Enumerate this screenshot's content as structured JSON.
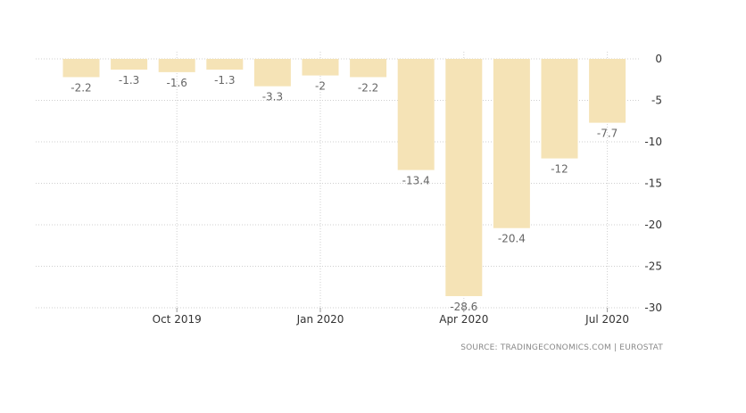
{
  "chart_data": {
    "type": "bar",
    "categories": [
      "Aug 2019",
      "Sep 2019",
      "Oct 2019",
      "Nov 2019",
      "Dec 2019",
      "Jan 2020",
      "Feb 2020",
      "Mar 2020",
      "Apr 2020",
      "May 2020",
      "Jun 2020",
      "Jul 2020"
    ],
    "values": [
      -2.2,
      -1.3,
      -1.6,
      -1.3,
      -3.3,
      -2,
      -2.2,
      -13.4,
      -28.6,
      -20.4,
      -12,
      -7.7
    ],
    "value_labels": [
      "-2.2",
      "-1.3",
      "-1.6",
      "-1.3",
      "-3.3",
      "-2",
      "-2.2",
      "-13.4",
      "-28.6",
      "-20.4",
      "-12",
      "-7.7"
    ],
    "x_tick_labels": [
      {
        "category": "Oct 2019",
        "label": "Oct 2019"
      },
      {
        "category": "Jan 2020",
        "label": "Jan 2020"
      },
      {
        "category": "Apr 2020",
        "label": "Apr 2020"
      },
      {
        "category": "Jul 2020",
        "label": "Jul 2020"
      }
    ],
    "y_ticks": [
      0,
      -5,
      -10,
      -15,
      -20,
      -25,
      -30
    ],
    "y_tick_labels": [
      "0",
      "-5",
      "-10",
      "-15",
      "-20",
      "-25",
      "-30"
    ],
    "ylim": [
      -30,
      0
    ],
    "y_axis_position": "right",
    "grid": true,
    "title": "",
    "xlabel": "",
    "ylabel": "",
    "bar_color": "#f5e3b6",
    "grid_color": "#cfcfcf",
    "source": "SOURCE: TRADINGECONOMICS.COM  |  EUROSTAT"
  }
}
